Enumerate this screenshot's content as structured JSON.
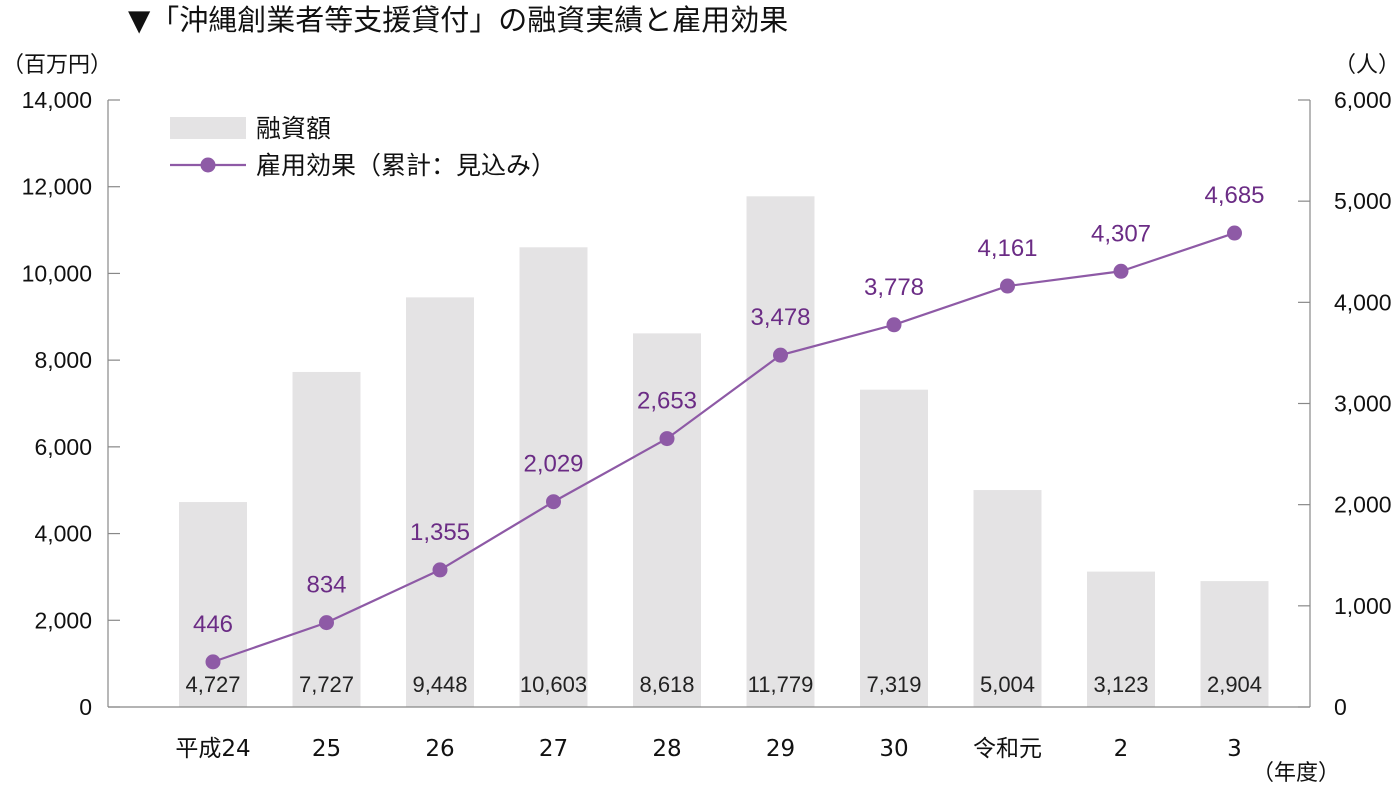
{
  "colors": {
    "bar": "#e4e3e4",
    "line": "#8e5aa6",
    "point": "#8e5aa6",
    "point_label": "#6b2c85",
    "axis": "#888888",
    "text": "#111111"
  },
  "chart_data": {
    "type": "bar+line",
    "title": "▼「沖縄創業者等支援貸付」の融資実績と雇用効果",
    "left_unit": "（百万円）",
    "right_unit": "（人）",
    "x_unit": "（年度）",
    "categories": [
      "平成24",
      "25",
      "26",
      "27",
      "28",
      "29",
      "30",
      "令和元",
      "2",
      "3"
    ],
    "left_ylim": [
      0,
      14000
    ],
    "left_ticks": [
      "0",
      "2,000",
      "4,000",
      "6,000",
      "8,000",
      "10,000",
      "12,000",
      "14,000"
    ],
    "right_ylim": [
      0,
      6000
    ],
    "right_ticks": [
      "0",
      "1,000",
      "2,000",
      "3,000",
      "4,000",
      "5,000",
      "6,000"
    ],
    "grid": false,
    "legend_position": "top-left",
    "series": [
      {
        "name": "融資額",
        "type": "bar",
        "axis": "left",
        "values": [
          4727,
          7727,
          9448,
          10603,
          8618,
          11779,
          7319,
          5004,
          3123,
          2904
        ],
        "labels": [
          "4,727",
          "7,727",
          "9,448",
          "10,603",
          "8,618",
          "11,779",
          "7,319",
          "5,004",
          "3,123",
          "2,904"
        ]
      },
      {
        "name": "雇用効果（累計：見込み）",
        "type": "line",
        "axis": "right",
        "values": [
          446,
          834,
          1355,
          2029,
          2653,
          3478,
          3778,
          4161,
          4307,
          4685
        ],
        "labels": [
          "446",
          "834",
          "1,355",
          "2,029",
          "2,653",
          "3,478",
          "3,778",
          "4,161",
          "4,307",
          "4,685"
        ]
      }
    ]
  }
}
